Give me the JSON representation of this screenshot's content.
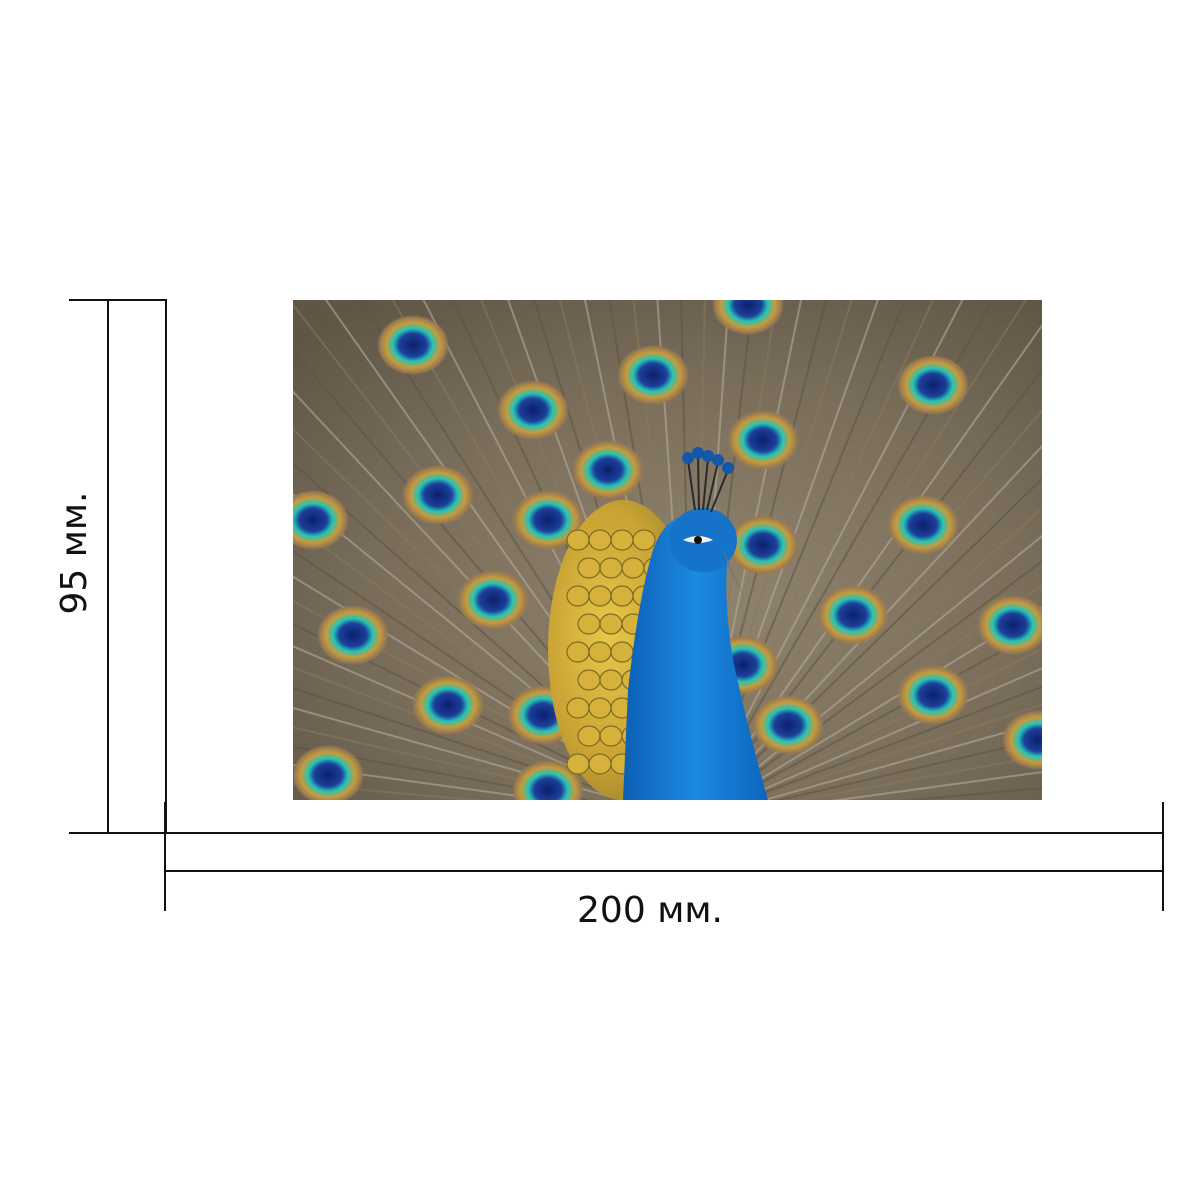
{
  "dimensions": {
    "width_label": "200 мм.",
    "height_label": "95 мм."
  },
  "photo": {
    "subject": "peacock-with-fanned-tail"
  },
  "colors": {
    "line": "#111111",
    "background": "#ffffff",
    "peacock_blue": "#1a7fd6",
    "feather_gold": "#d8b43a",
    "eye_teal": "#1fc0b0",
    "eye_navy": "#102a7a",
    "feather_brown": "#7a6a55"
  }
}
